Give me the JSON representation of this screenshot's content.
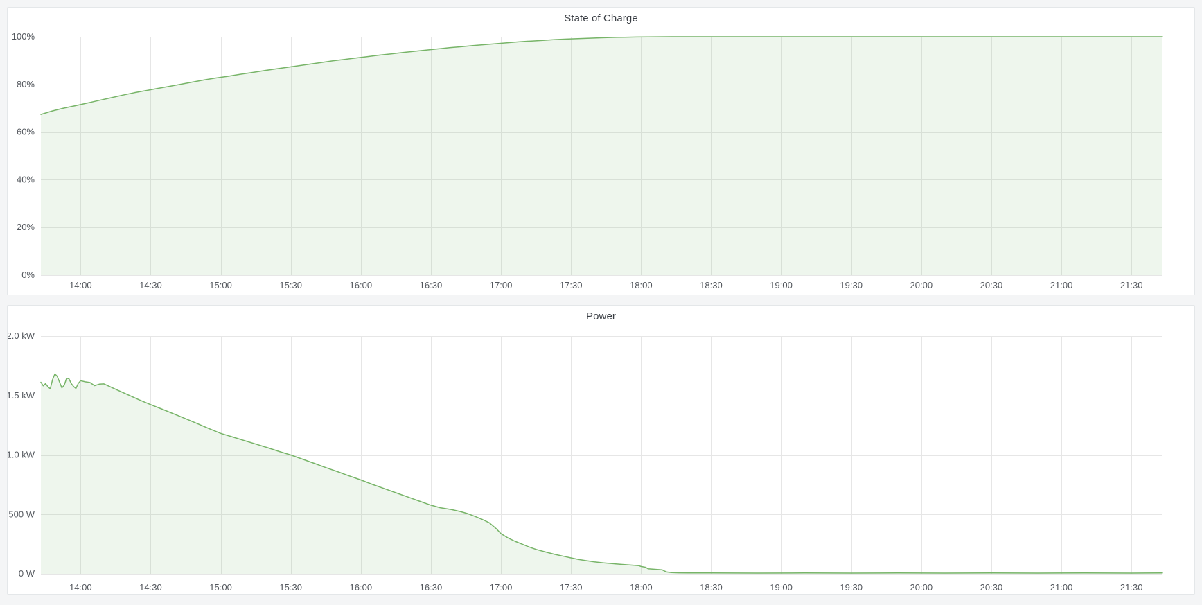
{
  "page": {
    "background": "#f4f5f6",
    "panel_background": "#ffffff",
    "panel_border": "#e4e7e9"
  },
  "panels": [
    {
      "title": "State of Charge"
    },
    {
      "title": "Power"
    }
  ],
  "colors": {
    "line": "#77b468",
    "fill": "rgba(118,177,104,0.12)",
    "grid": "#e6e6e6",
    "tick_text": "#54585e",
    "title_text": "#3a3e44"
  },
  "chart_data": [
    {
      "type": "area",
      "title": "State of Charge",
      "xlabel": "",
      "ylabel": "",
      "ylim": [
        0,
        100
      ],
      "x_range_minutes": [
        823,
        1303
      ],
      "grid": true,
      "legend": "none",
      "y_ticks": [
        {
          "value": 0,
          "label": "0%"
        },
        {
          "value": 20,
          "label": "20%"
        },
        {
          "value": 40,
          "label": "40%"
        },
        {
          "value": 60,
          "label": "60%"
        },
        {
          "value": 80,
          "label": "80%"
        },
        {
          "value": 100,
          "label": "100%"
        }
      ],
      "x_ticks": [
        {
          "minutes": 840,
          "label": "14:00"
        },
        {
          "minutes": 870,
          "label": "14:30"
        },
        {
          "minutes": 900,
          "label": "15:00"
        },
        {
          "minutes": 930,
          "label": "15:30"
        },
        {
          "minutes": 960,
          "label": "16:00"
        },
        {
          "minutes": 990,
          "label": "16:30"
        },
        {
          "minutes": 1020,
          "label": "17:00"
        },
        {
          "minutes": 1050,
          "label": "17:30"
        },
        {
          "minutes": 1080,
          "label": "18:00"
        },
        {
          "minutes": 1110,
          "label": "18:30"
        },
        {
          "minutes": 1140,
          "label": "19:00"
        },
        {
          "minutes": 1170,
          "label": "19:30"
        },
        {
          "minutes": 1200,
          "label": "20:00"
        },
        {
          "minutes": 1230,
          "label": "20:30"
        },
        {
          "minutes": 1260,
          "label": "21:00"
        },
        {
          "minutes": 1290,
          "label": "21:30"
        }
      ],
      "series": [
        {
          "name": "State of Charge",
          "unit": "%",
          "points": [
            [
              823,
              67.4
            ],
            [
              828,
              68.9
            ],
            [
              833,
              70.1
            ],
            [
              838,
              71.1
            ],
            [
              843,
              72.2
            ],
            [
              848,
              73.3
            ],
            [
              853,
              74.4
            ],
            [
              858,
              75.5
            ],
            [
              863,
              76.5
            ],
            [
              868,
              77.4
            ],
            [
              873,
              78.3
            ],
            [
              878,
              79.2
            ],
            [
              883,
              80.1
            ],
            [
              888,
              81.0
            ],
            [
              893,
              81.9
            ],
            [
              898,
              82.7
            ],
            [
              903,
              83.4
            ],
            [
              908,
              84.2
            ],
            [
              913,
              84.9
            ],
            [
              918,
              85.7
            ],
            [
              923,
              86.4
            ],
            [
              928,
              87.1
            ],
            [
              933,
              87.8
            ],
            [
              938,
              88.5
            ],
            [
              943,
              89.2
            ],
            [
              948,
              89.9
            ],
            [
              953,
              90.5
            ],
            [
              958,
              91.1
            ],
            [
              963,
              91.7
            ],
            [
              968,
              92.3
            ],
            [
              973,
              92.8
            ],
            [
              978,
              93.4
            ],
            [
              983,
              93.9
            ],
            [
              988,
              94.4
            ],
            [
              993,
              94.9
            ],
            [
              998,
              95.4
            ],
            [
              1003,
              95.8
            ],
            [
              1008,
              96.3
            ],
            [
              1013,
              96.7
            ],
            [
              1018,
              97.1
            ],
            [
              1023,
              97.5
            ],
            [
              1028,
              97.9
            ],
            [
              1033,
              98.2
            ],
            [
              1038,
              98.5
            ],
            [
              1043,
              98.8
            ],
            [
              1048,
              99.0
            ],
            [
              1053,
              99.2
            ],
            [
              1058,
              99.4
            ],
            [
              1063,
              99.55
            ],
            [
              1068,
              99.7
            ],
            [
              1073,
              99.8
            ],
            [
              1078,
              99.88
            ],
            [
              1083,
              99.93
            ],
            [
              1088,
              99.97
            ],
            [
              1093,
              100
            ],
            [
              1120,
              100
            ],
            [
              1160,
              100
            ],
            [
              1200,
              100
            ],
            [
              1250,
              100
            ],
            [
              1303,
              100
            ]
          ]
        }
      ]
    },
    {
      "type": "area",
      "title": "Power",
      "xlabel": "",
      "ylabel": "",
      "ylim": [
        0,
        2000
      ],
      "x_range_minutes": [
        823,
        1303
      ],
      "grid": true,
      "legend": "none",
      "y_ticks": [
        {
          "value": 0,
          "label": "0 W"
        },
        {
          "value": 500,
          "label": "500 W"
        },
        {
          "value": 1000,
          "label": "1.0 kW"
        },
        {
          "value": 1500,
          "label": "1.5 kW"
        },
        {
          "value": 2000,
          "label": "2.0 kW"
        }
      ],
      "x_ticks": [
        {
          "minutes": 840,
          "label": "14:00"
        },
        {
          "minutes": 870,
          "label": "14:30"
        },
        {
          "minutes": 900,
          "label": "15:00"
        },
        {
          "minutes": 930,
          "label": "15:30"
        },
        {
          "minutes": 960,
          "label": "16:00"
        },
        {
          "minutes": 990,
          "label": "16:30"
        },
        {
          "minutes": 1020,
          "label": "17:00"
        },
        {
          "minutes": 1050,
          "label": "17:30"
        },
        {
          "minutes": 1080,
          "label": "18:00"
        },
        {
          "minutes": 1110,
          "label": "18:30"
        },
        {
          "minutes": 1140,
          "label": "19:00"
        },
        {
          "minutes": 1170,
          "label": "19:30"
        },
        {
          "minutes": 1200,
          "label": "20:00"
        },
        {
          "minutes": 1230,
          "label": "20:30"
        },
        {
          "minutes": 1260,
          "label": "21:00"
        },
        {
          "minutes": 1290,
          "label": "21:30"
        }
      ],
      "series": [
        {
          "name": "Power",
          "unit": "W",
          "points": [
            [
              823,
              1612
            ],
            [
              824,
              1582
            ],
            [
              825,
              1600
            ],
            [
              826,
              1575
            ],
            [
              827,
              1556
            ],
            [
              828,
              1635
            ],
            [
              829,
              1682
            ],
            [
              830,
              1662
            ],
            [
              831,
              1612
            ],
            [
              832,
              1565
            ],
            [
              833,
              1588
            ],
            [
              834,
              1645
            ],
            [
              835,
              1642
            ],
            [
              836,
              1602
            ],
            [
              837,
              1576
            ],
            [
              838,
              1560
            ],
            [
              839,
              1602
            ],
            [
              840,
              1625
            ],
            [
              842,
              1616
            ],
            [
              844,
              1610
            ],
            [
              846,
              1583
            ],
            [
              848,
              1596
            ],
            [
              850,
              1598
            ],
            [
              855,
              1553
            ],
            [
              860,
              1509
            ],
            [
              865,
              1465
            ],
            [
              870,
              1424
            ],
            [
              875,
              1385
            ],
            [
              880,
              1345
            ],
            [
              885,
              1305
            ],
            [
              890,
              1264
            ],
            [
              895,
              1222
            ],
            [
              900,
              1182
            ],
            [
              905,
              1152
            ],
            [
              910,
              1122
            ],
            [
              915,
              1092
            ],
            [
              920,
              1062
            ],
            [
              925,
              1030
            ],
            [
              930,
              1000
            ],
            [
              935,
              965
            ],
            [
              940,
              930
            ],
            [
              945,
              894
            ],
            [
              950,
              860
            ],
            [
              955,
              824
            ],
            [
              960,
              790
            ],
            [
              965,
              752
            ],
            [
              970,
              718
            ],
            [
              975,
              682
            ],
            [
              980,
              648
            ],
            [
              985,
              612
            ],
            [
              990,
              578
            ],
            [
              994,
              556
            ],
            [
              999,
              540
            ],
            [
              1003,
              522
            ],
            [
              1006,
              505
            ],
            [
              1009,
              482
            ],
            [
              1012,
              458
            ],
            [
              1015,
              430
            ],
            [
              1018,
              380
            ],
            [
              1020,
              338
            ],
            [
              1023,
              302
            ],
            [
              1026,
              274
            ],
            [
              1029,
              250
            ],
            [
              1032,
              226
            ],
            [
              1035,
              206
            ],
            [
              1039,
              184
            ],
            [
              1043,
              164
            ],
            [
              1047,
              147
            ],
            [
              1050,
              134
            ],
            [
              1053,
              122
            ],
            [
              1056,
              112
            ],
            [
              1060,
              101
            ],
            [
              1064,
              92
            ],
            [
              1068,
              85
            ],
            [
              1072,
              79
            ],
            [
              1076,
              73
            ],
            [
              1079,
              68
            ],
            [
              1080,
              62
            ],
            [
              1082,
              55
            ],
            [
              1083,
              42
            ],
            [
              1086,
              38
            ],
            [
              1089,
              34
            ],
            [
              1090,
              24
            ],
            [
              1091,
              15
            ],
            [
              1093,
              10
            ],
            [
              1096,
              8
            ],
            [
              1100,
              7
            ],
            [
              1110,
              7
            ],
            [
              1130,
              6
            ],
            [
              1150,
              7
            ],
            [
              1170,
              6
            ],
            [
              1190,
              7
            ],
            [
              1210,
              6
            ],
            [
              1230,
              7
            ],
            [
              1250,
              6
            ],
            [
              1270,
              7
            ],
            [
              1290,
              6
            ],
            [
              1303,
              7
            ]
          ]
        }
      ]
    }
  ]
}
